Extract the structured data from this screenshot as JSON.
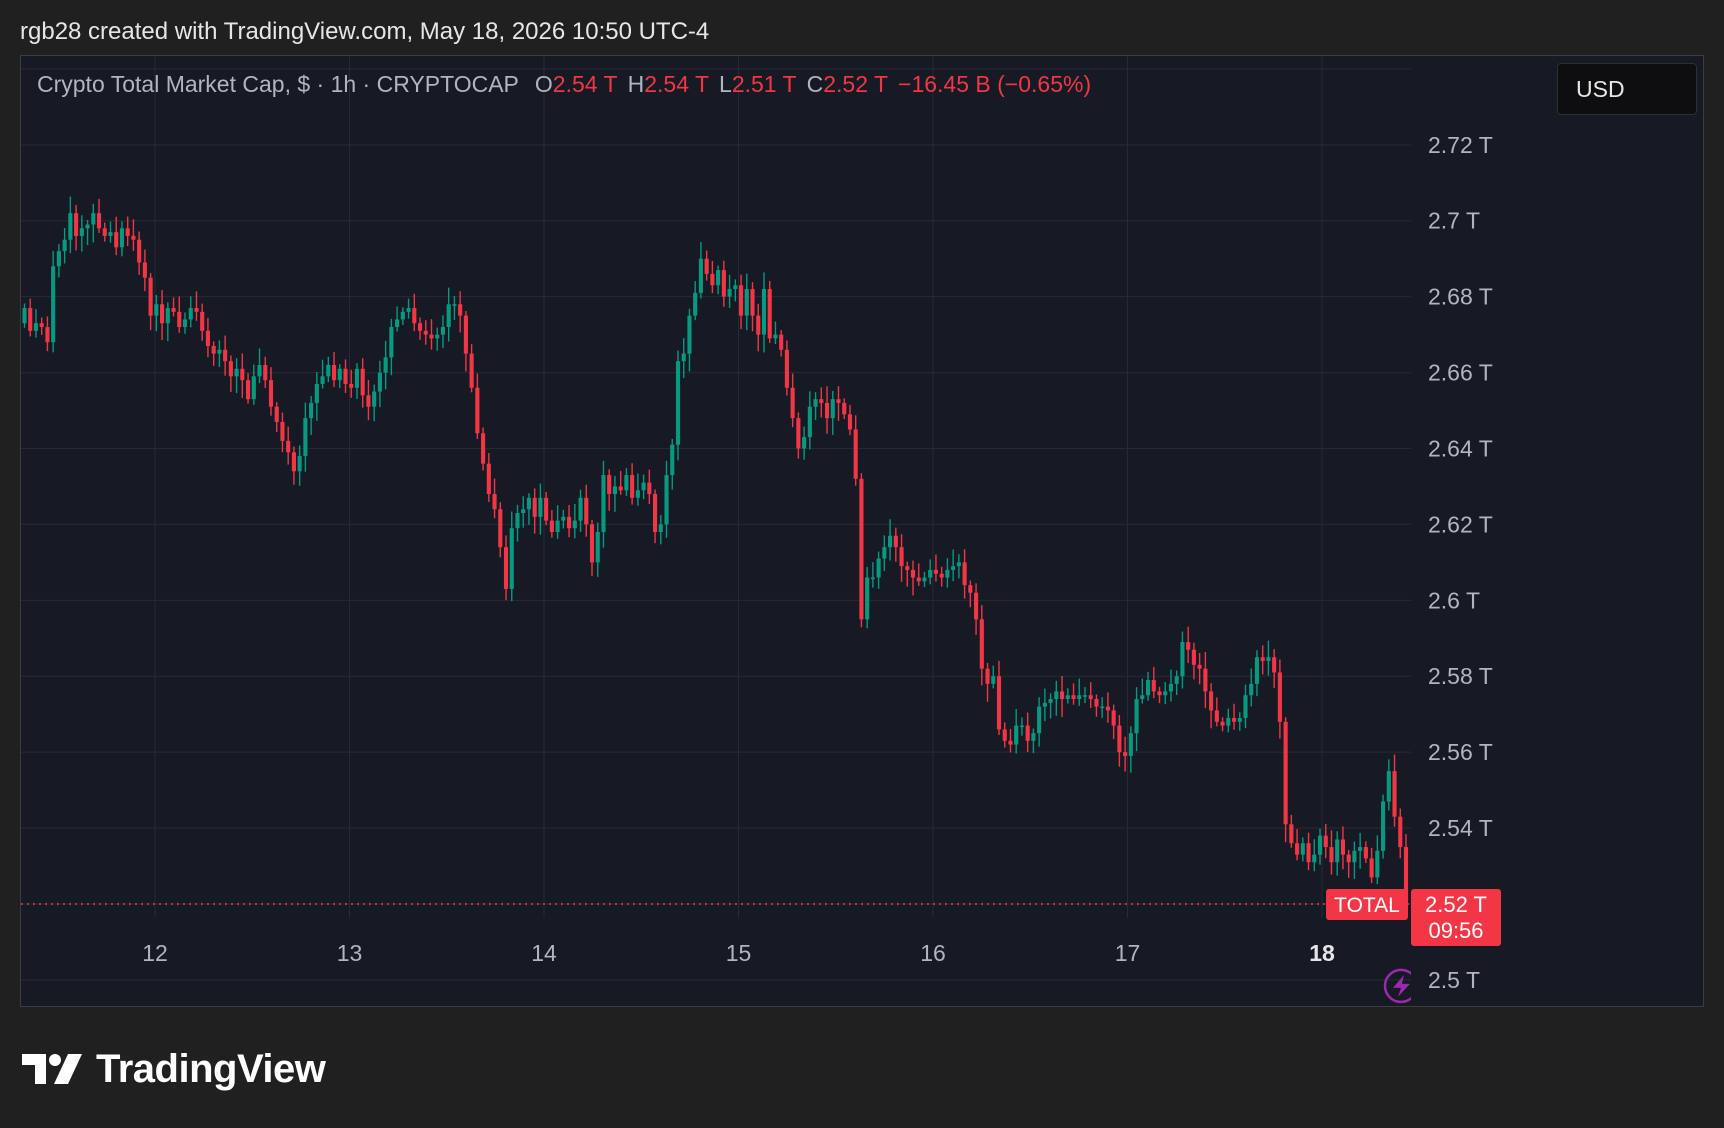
{
  "header": {
    "caption": "rgb28 created with TradingView.com, May 18, 2026 10:50 UTC-4"
  },
  "legend": {
    "symbol_desc": "Crypto Total Market Cap, $ · 1h · CRYPTOCAP",
    "open_label": "O",
    "open_value": "2.54 T",
    "high_label": "H",
    "high_value": "2.54 T",
    "low_label": "L",
    "low_value": "2.51 T",
    "close_label": "C",
    "close_value": "2.52 T",
    "change": "−16.45 B (−0.65%)"
  },
  "currency": "USD",
  "price_tag": {
    "symbol": "TOTAL",
    "price": "2.52 T",
    "countdown": "09:56"
  },
  "footer": {
    "brand": "TradingView"
  },
  "colors": {
    "up": "#089981",
    "down": "#f23645",
    "background": "#161a25",
    "grid": "#262a35",
    "accent_purple": "#9c27b0"
  },
  "chart_data": {
    "type": "candlestick",
    "title": "Crypto Total Market Cap, $ · 1h · CRYPTOCAP",
    "unit": "T (trillion USD)",
    "x_tick_labels": [
      "12",
      "13",
      "14",
      "15",
      "16",
      "17",
      "18"
    ],
    "x_tick_bold": "18",
    "y_tick_labels": [
      "2.72 T",
      "2.7 T",
      "2.68 T",
      "2.66 T",
      "2.64 T",
      "2.62 T",
      "2.6 T",
      "2.58 T",
      "2.56 T",
      "2.54 T",
      "2.5 T"
    ],
    "y_ticks": [
      2.72,
      2.7,
      2.68,
      2.66,
      2.64,
      2.62,
      2.6,
      2.58,
      2.56,
      2.54,
      2.5
    ],
    "ylim": [
      2.4926,
      2.7434
    ],
    "xlim_days": [
      11.31,
      18.455
    ],
    "last_price": 2.52,
    "grid": true,
    "closes": [
      2.677,
      2.671,
      2.673,
      2.672,
      2.668,
      2.688,
      2.692,
      2.695,
      2.702,
      2.696,
      2.698,
      2.699,
      2.702,
      2.698,
      2.696,
      2.697,
      2.693,
      2.698,
      2.696,
      2.695,
      2.689,
      2.685,
      2.675,
      2.678,
      2.673,
      2.677,
      2.676,
      2.672,
      2.674,
      2.677,
      2.676,
      2.671,
      2.667,
      2.665,
      2.666,
      2.663,
      2.659,
      2.661,
      2.658,
      2.653,
      2.659,
      2.662,
      2.658,
      2.651,
      2.647,
      2.642,
      2.639,
      2.634,
      2.638,
      2.648,
      2.652,
      2.657,
      2.659,
      2.662,
      2.658,
      2.661,
      2.657,
      2.656,
      2.661,
      2.654,
      2.651,
      2.655,
      2.66,
      2.664,
      2.672,
      2.674,
      2.676,
      2.677,
      2.673,
      2.671,
      2.67,
      2.669,
      2.67,
      2.672,
      2.678,
      2.678,
      2.675,
      2.665,
      2.656,
      2.644,
      2.636,
      2.628,
      2.624,
      2.614,
      2.603,
      2.619,
      2.623,
      2.624,
      2.627,
      2.622,
      2.627,
      2.621,
      2.618,
      2.621,
      2.622,
      2.619,
      2.621,
      2.627,
      2.62,
      2.61,
      2.618,
      2.633,
      2.628,
      2.63,
      2.629,
      2.633,
      2.627,
      2.629,
      2.631,
      2.628,
      2.618,
      2.62,
      2.633,
      2.641,
      2.663,
      2.665,
      2.675,
      2.681,
      2.69,
      2.686,
      2.683,
      2.687,
      2.68,
      2.682,
      2.683,
      2.675,
      2.682,
      2.675,
      2.67,
      2.682,
      2.669,
      2.67,
      2.666,
      2.656,
      2.648,
      2.64,
      2.643,
      2.651,
      2.653,
      2.652,
      2.648,
      2.653,
      2.652,
      2.649,
      2.645,
      2.632,
      2.595,
      2.606,
      2.606,
      2.611,
      2.614,
      2.617,
      2.614,
      2.609,
      2.608,
      2.606,
      2.605,
      2.606,
      2.608,
      2.607,
      2.606,
      2.608,
      2.609,
      2.61,
      2.604,
      2.602,
      2.595,
      2.582,
      2.578,
      2.58,
      2.566,
      2.563,
      2.562,
      2.567,
      2.567,
      2.563,
      2.565,
      2.572,
      2.573,
      2.574,
      2.576,
      2.574,
      2.575,
      2.574,
      2.575,
      2.575,
      2.574,
      2.572,
      2.572,
      2.571,
      2.567,
      2.56,
      2.559,
      2.565,
      2.574,
      2.575,
      2.579,
      2.576,
      2.575,
      2.576,
      2.578,
      2.58,
      2.589,
      2.587,
      2.583,
      2.582,
      2.576,
      2.571,
      2.568,
      2.567,
      2.569,
      2.568,
      2.569,
      2.575,
      2.578,
      2.585,
      2.584,
      2.585,
      2.581,
      2.568,
      2.541,
      2.536,
      2.533,
      2.536,
      2.531,
      2.533,
      2.538,
      2.535,
      2.531,
      2.537,
      2.533,
      2.531,
      2.534,
      2.535,
      2.532,
      2.527,
      2.534,
      2.547,
      2.555,
      2.543,
      2.535,
      2.521
    ]
  }
}
